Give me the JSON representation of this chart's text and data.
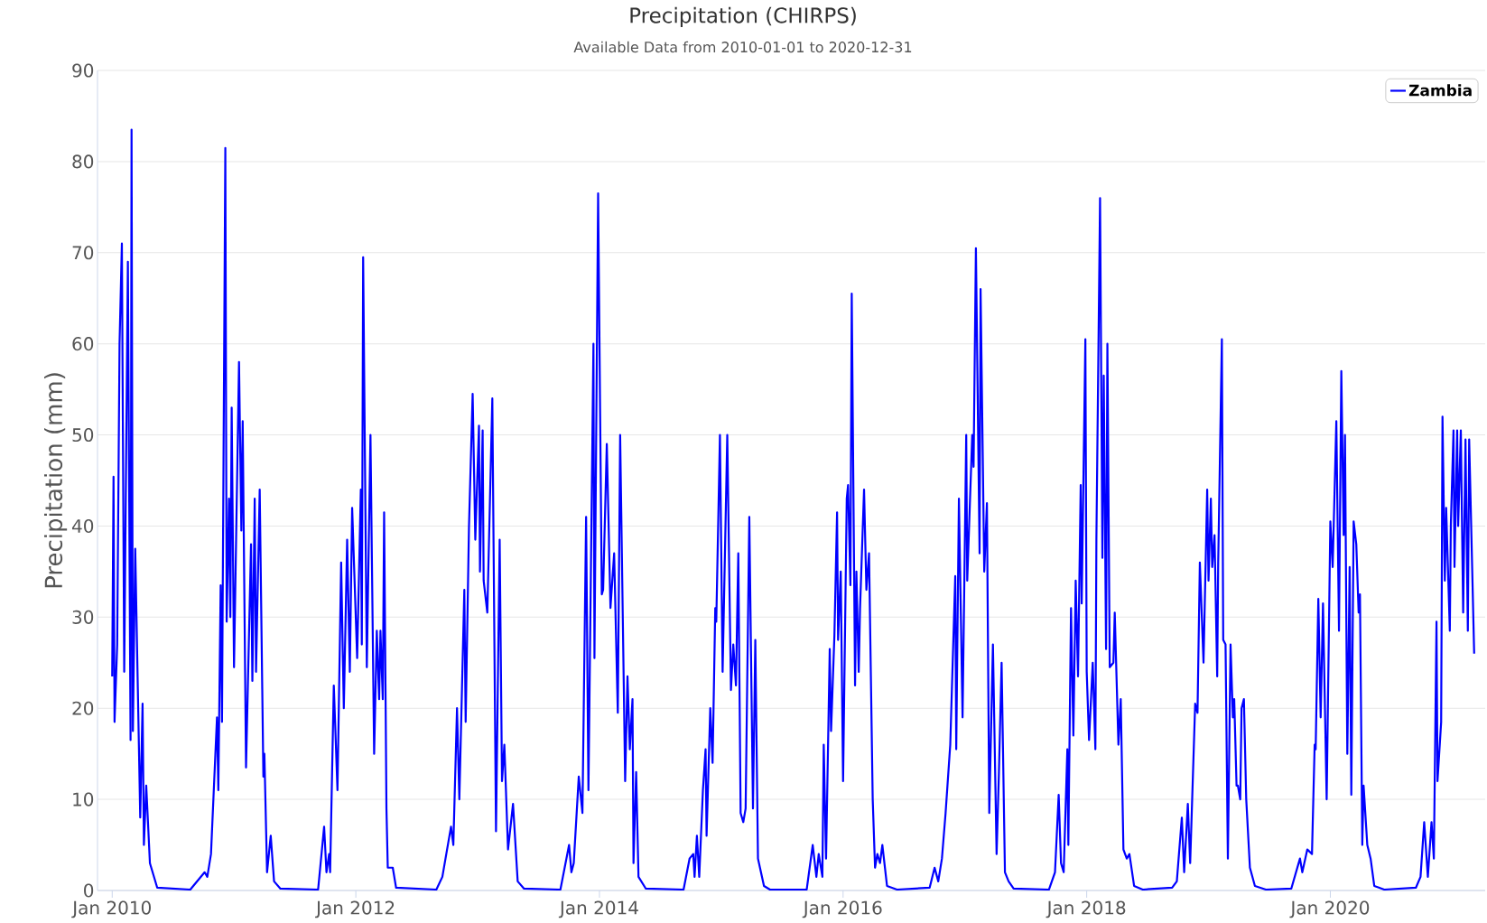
{
  "chart_data": {
    "type": "line",
    "title": "Precipitation (CHIRPS)",
    "subtitle": "Available Data from 2010-01-01 to 2020-12-31",
    "ylabel": "Precipitation (mm)",
    "xlim": [
      "2009-11-18",
      "2021-04-10"
    ],
    "ylim": [
      0,
      90
    ],
    "xticks": [
      {
        "value": "2010-01-01",
        "label": "Jan 2010"
      },
      {
        "value": "2012-01-01",
        "label": "Jan 2012"
      },
      {
        "value": "2014-01-01",
        "label": "Jan 2014"
      },
      {
        "value": "2016-01-01",
        "label": "Jan 2016"
      },
      {
        "value": "2018-01-01",
        "label": "Jan 2018"
      },
      {
        "value": "2020-01-01",
        "label": "Jan 2020"
      }
    ],
    "yticks": [
      0,
      10,
      20,
      30,
      40,
      50,
      60,
      70,
      80,
      90
    ],
    "grid": "y",
    "legend": "top right",
    "line_style": "solid",
    "x": [
      "2010-01-01",
      "2010-01-05",
      "2010-01-08",
      "2010-01-16",
      "2010-01-23",
      "2010-01-30",
      "2010-02-06",
      "2010-02-17",
      "2010-02-25",
      "2010-02-28",
      "2010-03-04",
      "2010-03-11",
      "2010-03-26",
      "2010-04-02",
      "2010-04-06",
      "2010-04-13",
      "2010-04-24",
      "2010-05-16",
      "2010-08-23",
      "2010-10-05",
      "2010-10-13",
      "2010-10-24",
      "2010-11-11",
      "2010-11-15",
      "2010-11-22",
      "2010-11-26",
      "2010-12-06",
      "2010-12-10",
      "2010-12-17",
      "2010-12-21",
      "2010-12-25",
      "2011-01-01",
      "2011-01-16",
      "2011-01-23",
      "2011-01-27",
      "2011-02-06",
      "2011-02-21",
      "2011-02-25",
      "2011-03-04",
      "2011-03-08",
      "2011-03-19",
      "2011-03-30",
      "2011-04-02",
      "2011-04-10",
      "2011-04-21",
      "2011-05-01",
      "2011-05-20",
      "2011-09-10",
      "2011-09-28",
      "2011-10-05",
      "2011-10-13",
      "2011-10-16",
      "2011-10-27",
      "2011-11-07",
      "2011-11-18",
      "2011-11-26",
      "2011-12-06",
      "2011-12-14",
      "2011-12-21",
      "2012-01-05",
      "2012-01-16",
      "2012-01-19",
      "2012-01-23",
      "2012-02-03",
      "2012-02-14",
      "2012-02-25",
      "2012-03-04",
      "2012-03-11",
      "2012-03-15",
      "2012-03-22",
      "2012-03-26",
      "2012-04-02",
      "2012-04-06",
      "2012-04-21",
      "2012-05-01",
      "2012-08-30",
      "2012-09-17",
      "2012-10-13",
      "2012-10-20",
      "2012-10-31",
      "2012-11-07",
      "2012-11-22",
      "2012-11-26",
      "2012-12-06",
      "2012-12-17",
      "2012-12-25",
      "2013-01-05",
      "2013-01-08",
      "2013-01-16",
      "2013-01-19",
      "2013-01-30",
      "2013-02-14",
      "2013-02-25",
      "2013-03-08",
      "2013-03-15",
      "2013-03-22",
      "2013-04-02",
      "2013-04-17",
      "2013-05-01",
      "2013-05-20",
      "2013-09-06",
      "2013-10-02",
      "2013-10-09",
      "2013-10-16",
      "2013-10-31",
      "2013-11-11",
      "2013-11-22",
      "2013-11-29",
      "2013-12-14",
      "2013-12-17",
      "2013-12-28",
      "2014-01-08",
      "2014-01-12",
      "2014-01-23",
      "2014-02-03",
      "2014-02-14",
      "2014-02-25",
      "2014-03-04",
      "2014-03-19",
      "2014-03-26",
      "2014-04-02",
      "2014-04-10",
      "2014-04-13",
      "2014-04-21",
      "2014-04-28",
      "2014-05-20",
      "2014-09-10",
      "2014-09-28",
      "2014-10-09",
      "2014-10-13",
      "2014-10-20",
      "2014-10-27",
      "2014-11-07",
      "2014-11-15",
      "2014-11-18",
      "2014-11-29",
      "2014-12-06",
      "2014-12-14",
      "2014-12-17",
      "2014-12-28",
      "2015-01-05",
      "2015-01-19",
      "2015-01-30",
      "2015-02-06",
      "2015-02-14",
      "2015-02-21",
      "2015-02-28",
      "2015-03-08",
      "2015-03-15",
      "2015-03-26",
      "2015-04-06",
      "2015-04-13",
      "2015-04-21",
      "2015-05-09",
      "2015-05-27",
      "2015-09-14",
      "2015-10-02",
      "2015-10-13",
      "2015-10-20",
      "2015-10-31",
      "2015-11-04",
      "2015-11-11",
      "2015-11-22",
      "2015-11-26",
      "2015-12-06",
      "2015-12-14",
      "2015-12-17",
      "2015-12-25",
      "2016-01-01",
      "2016-01-12",
      "2016-01-16",
      "2016-01-23",
      "2016-01-27",
      "2016-02-06",
      "2016-02-10",
      "2016-02-17",
      "2016-02-21",
      "2016-03-04",
      "2016-03-11",
      "2016-03-19",
      "2016-03-30",
      "2016-04-06",
      "2016-04-13",
      "2016-04-21",
      "2016-04-28",
      "2016-05-12",
      "2016-06-11",
      "2016-09-17",
      "2016-10-02",
      "2016-10-13",
      "2016-10-24",
      "2016-11-04",
      "2016-11-18",
      "2016-12-03",
      "2016-12-06",
      "2016-12-14",
      "2016-12-25",
      "2017-01-05",
      "2017-01-08",
      "2017-01-23",
      "2017-01-27",
      "2017-02-03",
      "2017-02-14",
      "2017-02-17",
      "2017-02-28",
      "2017-03-08",
      "2017-03-15",
      "2017-03-26",
      "2017-04-06",
      "2017-04-13",
      "2017-04-21",
      "2017-05-01",
      "2017-05-12",
      "2017-05-27",
      "2017-09-10",
      "2017-09-28",
      "2017-10-09",
      "2017-10-16",
      "2017-10-24",
      "2017-11-04",
      "2017-11-07",
      "2017-11-15",
      "2017-11-22",
      "2017-11-29",
      "2017-12-06",
      "2017-12-14",
      "2017-12-17",
      "2017-12-28",
      "2018-01-01",
      "2018-01-08",
      "2018-01-19",
      "2018-01-27",
      "2018-01-30",
      "2018-02-10",
      "2018-02-17",
      "2018-02-21",
      "2018-02-28",
      "2018-03-04",
      "2018-03-11",
      "2018-03-22",
      "2018-03-26",
      "2018-04-06",
      "2018-04-13",
      "2018-04-21",
      "2018-05-01",
      "2018-05-09",
      "2018-05-23",
      "2018-06-18",
      "2018-09-14",
      "2018-09-28",
      "2018-10-13",
      "2018-10-20",
      "2018-10-31",
      "2018-11-07",
      "2018-11-22",
      "2018-11-29",
      "2018-12-06",
      "2018-12-17",
      "2018-12-28",
      "2019-01-01",
      "2019-01-08",
      "2019-01-12",
      "2019-01-19",
      "2019-01-27",
      "2019-01-30",
      "2019-02-10",
      "2019-02-14",
      "2019-02-21",
      "2019-02-28",
      "2019-03-08",
      "2019-03-15",
      "2019-03-19",
      "2019-03-26",
      "2019-03-30",
      "2019-04-06",
      "2019-04-10",
      "2019-04-17",
      "2019-04-24",
      "2019-05-05",
      "2019-05-20",
      "2019-06-22",
      "2019-09-06",
      "2019-10-02",
      "2019-10-09",
      "2019-10-24",
      "2019-11-07",
      "2019-11-15",
      "2019-11-18",
      "2019-11-26",
      "2019-12-03",
      "2019-12-10",
      "2019-12-21",
      "2020-01-01",
      "2020-01-08",
      "2020-01-19",
      "2020-01-27",
      "2020-02-03",
      "2020-02-10",
      "2020-02-14",
      "2020-02-21",
      "2020-02-28",
      "2020-03-04",
      "2020-03-11",
      "2020-03-19",
      "2020-03-26",
      "2020-03-30",
      "2020-04-06",
      "2020-04-10",
      "2020-04-21",
      "2020-05-01",
      "2020-05-12",
      "2020-06-11",
      "2020-09-14",
      "2020-09-28",
      "2020-10-09",
      "2020-10-20",
      "2020-10-31",
      "2020-11-07",
      "2020-11-15",
      "2020-11-18",
      "2020-11-29",
      "2020-12-03",
      "2020-12-10",
      "2020-12-14",
      "2020-12-25",
      "2020-12-28",
      "2021-01-05",
      "2021-01-08",
      "2021-01-16",
      "2021-01-19",
      "2021-01-27",
      "2021-02-03",
      "2021-02-10",
      "2021-02-17",
      "2021-02-21",
      "2021-03-08"
    ],
    "series": [
      {
        "name": "Zambia",
        "color": "#0000ff",
        "values": [
          23.5,
          45.4,
          18.5,
          27,
          60,
          71,
          24,
          69,
          16.5,
          83.5,
          17.5,
          37.5,
          8,
          20.5,
          5,
          11.5,
          3,
          0.3,
          0.1,
          2,
          1.5,
          4,
          19,
          11,
          33.5,
          18.5,
          81.5,
          29.5,
          43,
          30,
          53,
          24.5,
          58,
          39.5,
          51.5,
          13.5,
          38,
          23,
          43,
          24,
          44,
          12.5,
          15,
          2,
          6,
          1,
          0.2,
          0.1,
          7,
          2,
          4,
          2,
          22.5,
          11,
          36,
          20,
          38.5,
          24,
          42,
          25.5,
          44,
          27,
          69.5,
          24.5,
          50,
          15,
          28.5,
          21,
          28.5,
          21,
          41.5,
          9,
          2.5,
          2.5,
          0.3,
          0.1,
          1.5,
          7,
          5,
          20,
          10,
          33,
          18.5,
          40,
          54.5,
          38.5,
          51,
          35,
          50.5,
          34,
          30.5,
          54,
          6.5,
          38.5,
          12,
          16,
          4.5,
          9.5,
          1,
          0.2,
          0.1,
          5,
          2,
          3,
          12.5,
          8.5,
          41,
          11,
          60,
          25.5,
          76.5,
          32.5,
          33,
          49,
          31,
          37,
          19.5,
          50,
          12,
          23.5,
          15.5,
          21,
          3,
          13,
          1.5,
          0.2,
          0.1,
          3.5,
          4,
          1.5,
          6,
          1.5,
          11,
          15.5,
          6,
          20,
          14,
          31,
          29.5,
          50,
          24,
          50,
          22,
          27,
          22.5,
          37,
          8.5,
          7.5,
          9,
          41,
          9,
          27.5,
          3.5,
          0.5,
          0.1,
          0.1,
          5,
          1.5,
          4,
          1.5,
          16,
          3.5,
          26.5,
          17.5,
          28,
          41.5,
          27.5,
          35,
          12,
          43,
          44.5,
          33.5,
          65.5,
          22.5,
          35,
          24,
          31,
          44,
          33,
          37,
          10,
          2.5,
          4,
          3,
          5,
          0.5,
          0.1,
          0.3,
          2.5,
          1,
          3.5,
          8.5,
          16,
          34.5,
          15.5,
          43,
          19,
          50,
          34,
          50,
          46.5,
          70.5,
          37,
          66,
          35,
          42.5,
          8.5,
          27,
          4,
          13,
          25,
          2,
          1,
          0.2,
          0.1,
          2,
          10.5,
          3,
          2,
          15.5,
          5,
          31,
          17,
          34,
          23.5,
          44.5,
          31.5,
          60.5,
          24,
          16.5,
          25,
          15.5,
          38.5,
          76,
          36.5,
          56.5,
          26.5,
          60,
          24.5,
          25,
          30.5,
          16,
          21,
          4.5,
          3.5,
          4,
          0.5,
          0.1,
          0.3,
          1,
          8,
          2,
          9.5,
          3,
          20.5,
          19.5,
          36,
          25,
          44,
          34,
          43,
          35.5,
          39,
          23.5,
          36,
          60.5,
          27.5,
          27,
          3.5,
          27,
          19,
          21,
          11.5,
          11.5,
          10,
          20,
          21,
          10,
          2.5,
          0.5,
          0.1,
          0.2,
          3.5,
          2,
          4.5,
          4,
          16,
          15.5,
          32,
          19,
          31.5,
          10,
          40.5,
          35.5,
          51.5,
          28.5,
          57,
          39,
          50,
          15,
          35.5,
          10.5,
          40.5,
          38,
          30.5,
          32.5,
          5,
          11.5,
          5,
          3.5,
          0.5,
          0.1,
          0.3,
          1.5,
          7.5,
          1.5,
          7.5,
          3.5,
          29.5,
          12,
          18.5,
          52,
          34,
          42,
          28.5,
          40,
          50.5,
          35.5,
          50.5,
          40,
          50.5,
          30.5,
          49.5,
          28.5,
          49.5,
          26
        ]
      }
    ]
  }
}
